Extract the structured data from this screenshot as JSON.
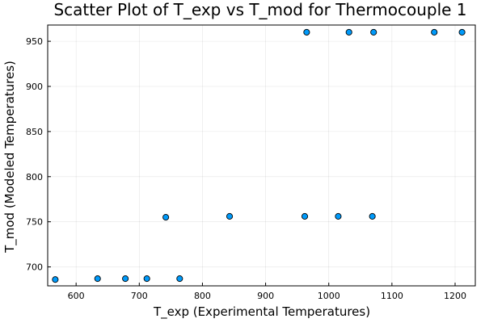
{
  "chart_data": {
    "type": "scatter",
    "title": "Scatter Plot of T_exp vs T_mod for Thermocouple 1",
    "xlabel": "T_exp (Experimental Temperatures)",
    "ylabel": "T_mod (Modeled Temperatures)",
    "xlim": [
      555,
      1232
    ],
    "ylim": [
      679,
      968
    ],
    "xticks": [
      600,
      700,
      800,
      900,
      1000,
      1100,
      1200
    ],
    "yticks": [
      700,
      750,
      800,
      850,
      900,
      950
    ],
    "grid": true,
    "legend": "none",
    "marker_color": "#009AFA",
    "points": [
      {
        "x": 567,
        "y": 686
      },
      {
        "x": 634,
        "y": 687
      },
      {
        "x": 678,
        "y": 687
      },
      {
        "x": 712,
        "y": 687
      },
      {
        "x": 764,
        "y": 687
      },
      {
        "x": 742,
        "y": 755
      },
      {
        "x": 843,
        "y": 756
      },
      {
        "x": 962,
        "y": 756
      },
      {
        "x": 1015,
        "y": 756
      },
      {
        "x": 1069,
        "y": 756
      },
      {
        "x": 965,
        "y": 960
      },
      {
        "x": 1032,
        "y": 960
      },
      {
        "x": 1071,
        "y": 960
      },
      {
        "x": 1167,
        "y": 960
      },
      {
        "x": 1211,
        "y": 960
      }
    ]
  }
}
